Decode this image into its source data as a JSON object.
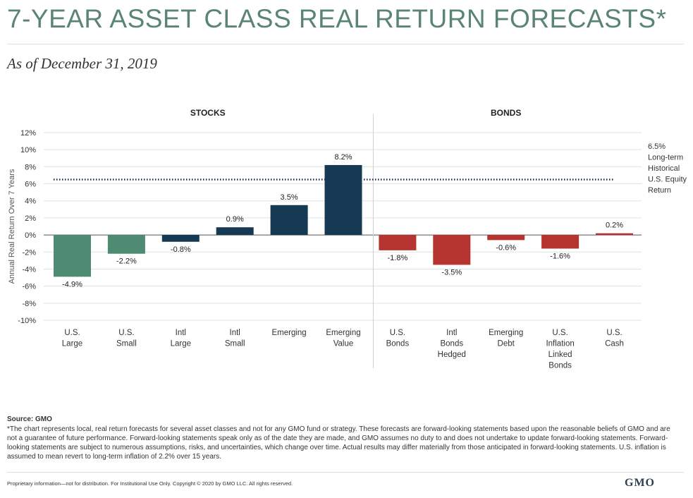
{
  "header": {
    "title": "7-YEAR ASSET CLASS REAL RETURN FORECASTS*",
    "subtitle": "As of December 31, 2019"
  },
  "chart_data": {
    "type": "bar",
    "ylabel": "Annual Real Return Over 7 Years",
    "ylim": [
      -10,
      12
    ],
    "yticks": [
      12,
      10,
      8,
      6,
      4,
      2,
      0,
      -2,
      -4,
      -6,
      -8,
      -10
    ],
    "tick_suffix": "%",
    "grid": true,
    "groups": [
      {
        "name": "STOCKS",
        "start": 0,
        "end": 5
      },
      {
        "name": "BONDS",
        "start": 6,
        "end": 10
      }
    ],
    "categories": [
      [
        "U.S.",
        "Large"
      ],
      [
        "U.S.",
        "Small"
      ],
      [
        "Intl",
        "Large"
      ],
      [
        "Intl",
        "Small"
      ],
      [
        "Emerging"
      ],
      [
        "Emerging",
        "Value"
      ],
      [
        "U.S.",
        "Bonds"
      ],
      [
        "Intl",
        "Bonds",
        "Hedged"
      ],
      [
        "Emerging",
        "Debt"
      ],
      [
        "U.S.",
        "Inflation",
        "Linked",
        "Bonds"
      ],
      [
        "U.S.",
        "Cash"
      ]
    ],
    "values": [
      -4.9,
      -2.2,
      -0.8,
      0.9,
      3.5,
      8.2,
      -1.8,
      -3.5,
      -0.6,
      -1.6,
      0.2
    ],
    "labels": [
      "-4.9%",
      "-2.2%",
      "-0.8%",
      "0.9%",
      "3.5%",
      "8.2%",
      "-1.8%",
      "-3.5%",
      "-0.6%",
      "-1.6%",
      "0.2%"
    ],
    "reference_line": {
      "value": 6.5,
      "label": [
        "6.5%",
        "Long-term",
        "Historical",
        "U.S. Equity",
        "Return"
      ]
    }
  },
  "colors": {
    "us_stocks": "#4f8a72",
    "intl_stocks": "#173a54",
    "bonds": "#b5342f",
    "title": "#5a8475"
  },
  "bar_colors": [
    "#4f8a72",
    "#4f8a72",
    "#173a54",
    "#173a54",
    "#173a54",
    "#173a54",
    "#b5342f",
    "#b5342f",
    "#b5342f",
    "#b5342f",
    "#b5342f"
  ],
  "footer": {
    "source": "Source: GMO",
    "footnote": "*The chart represents local, real return forecasts for several asset classes and not for any GMO fund or strategy. These forecasts are forward-looking statements based upon the reasonable beliefs of GMO and are not a guarantee of future performance. Forward-looking statements speak only as of the date they are made, and GMO assumes no duty to and does not undertake to update forward-looking statements. Forward-looking statements are subject to numerous assumptions, risks, and uncertainties, which change over time. Actual results may differ materially from those anticipated in forward-looking statements. U.S. inflation is assumed to mean revert to long-term inflation of 2.2% over 15 years.",
    "proprietary": "Proprietary information—not for distribution. For Institutional Use Only. Copyright © 2020 by GMO LLC. All rights reserved.",
    "logo": "GMO"
  }
}
